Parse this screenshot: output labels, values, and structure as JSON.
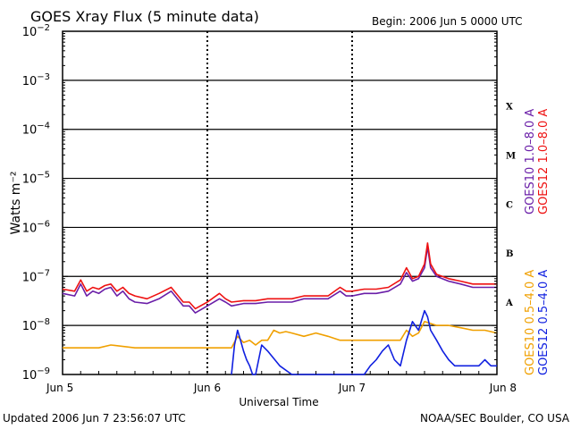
{
  "title": "GOES Xray Flux (5 minute data)",
  "begin_label": "Begin:  2006 Jun 5 0000 UTC",
  "updated_label": "Updated 2006 Jun  7 23:56:07 UTC",
  "credit_label": "NOAA/SEC Boulder, CO USA",
  "chart_data": {
    "type": "line",
    "title": "GOES Xray Flux (5 minute data)",
    "xlabel": "Universal Time",
    "ylabel": "Watts m⁻²",
    "y_scale": "log",
    "ylim": [
      1e-09,
      0.01
    ],
    "xlim": [
      "2006-06-05 00:00",
      "2006-06-08 00:00"
    ],
    "x_ticks": [
      {
        "t": "2006-06-05 00:00",
        "label": "Jun 5"
      },
      {
        "t": "2006-06-06 00:00",
        "label": "Jun 6"
      },
      {
        "t": "2006-06-07 00:00",
        "label": "Jun 7"
      },
      {
        "t": "2006-06-08 00:00",
        "label": "Jun 8"
      }
    ],
    "y_ticks": [
      {
        "value": 0.01,
        "mantissa": "10",
        "exp": "−2"
      },
      {
        "value": 0.001,
        "mantissa": "10",
        "exp": "−3"
      },
      {
        "value": 0.0001,
        "mantissa": "10",
        "exp": "−4"
      },
      {
        "value": 1e-05,
        "mantissa": "10",
        "exp": "−5"
      },
      {
        "value": 1e-06,
        "mantissa": "10",
        "exp": "−6"
      },
      {
        "value": 1e-07,
        "mantissa": "10",
        "exp": "−7"
      },
      {
        "value": 1e-08,
        "mantissa": "10",
        "exp": "−8"
      },
      {
        "value": 1e-09,
        "mantissa": "10",
        "exp": "−9"
      }
    ],
    "flare_classes": [
      {
        "label": "X",
        "value": 0.0003
      },
      {
        "label": "M",
        "value": 3e-05
      },
      {
        "label": "C",
        "value": 3e-06
      },
      {
        "label": "B",
        "value": 3e-07
      },
      {
        "label": "A",
        "value": 3e-08
      }
    ],
    "grid": "horizontal lines at 1e-3 to 1e-8, dashed day boundaries",
    "legend": [
      {
        "name": "GOES10 1.0–8.0 A",
        "color": "#6a1ea8"
      },
      {
        "name": "GOES12 1.0–8.0 A",
        "color": "#ee1111"
      },
      {
        "name": "GOES10 0.5–4.0 A",
        "color": "#f0a000"
      },
      {
        "name": "GOES12 0.5–4.0 A",
        "color": "#1020e0"
      }
    ],
    "series": [
      {
        "name": "GOES10 1.0–8.0 A",
        "color": "#6a1ea8",
        "x_hours": [
          0,
          2,
          3,
          4,
          5,
          6,
          7,
          8,
          9,
          10,
          11,
          12,
          14,
          16,
          18,
          20,
          21,
          22,
          24,
          26,
          27,
          28,
          30,
          32,
          34,
          36,
          38,
          40,
          42,
          44,
          46,
          47,
          48,
          50,
          52,
          54,
          56,
          57,
          58,
          59,
          60,
          60.5,
          61,
          62,
          64,
          66,
          68,
          70,
          72
        ],
        "values": [
          4.5e-08,
          4e-08,
          7e-08,
          4e-08,
          5e-08,
          4.5e-08,
          5.5e-08,
          6e-08,
          4e-08,
          5e-08,
          3.5e-08,
          3e-08,
          2.8e-08,
          3.5e-08,
          5e-08,
          2.5e-08,
          2.5e-08,
          1.8e-08,
          2.5e-08,
          3.5e-08,
          3e-08,
          2.5e-08,
          2.8e-08,
          2.8e-08,
          3e-08,
          3e-08,
          3e-08,
          3.5e-08,
          3.5e-08,
          3.5e-08,
          5e-08,
          4e-08,
          4e-08,
          4.5e-08,
          4.5e-08,
          5e-08,
          7e-08,
          1.2e-07,
          8e-08,
          9e-08,
          1.5e-07,
          4e-07,
          1.5e-07,
          1e-07,
          8e-08,
          7e-08,
          6e-08,
          6e-08,
          6e-08
        ]
      },
      {
        "name": "GOES12 1.0–8.0 A",
        "color": "#ee1111",
        "x_hours": [
          0,
          2,
          3,
          4,
          5,
          6,
          7,
          8,
          9,
          10,
          11,
          12,
          14,
          16,
          18,
          20,
          21,
          22,
          24,
          26,
          27,
          28,
          30,
          32,
          34,
          36,
          38,
          40,
          42,
          44,
          46,
          47,
          48,
          50,
          52,
          54,
          56,
          57,
          58,
          59,
          60,
          60.5,
          61,
          62,
          64,
          66,
          68,
          70,
          72
        ],
        "values": [
          5.5e-08,
          5e-08,
          8.5e-08,
          5e-08,
          6e-08,
          5.5e-08,
          6.5e-08,
          7e-08,
          5e-08,
          6e-08,
          4.5e-08,
          4e-08,
          3.5e-08,
          4.5e-08,
          6e-08,
          3e-08,
          3e-08,
          2.2e-08,
          3e-08,
          4.5e-08,
          3.5e-08,
          3e-08,
          3.2e-08,
          3.2e-08,
          3.5e-08,
          3.5e-08,
          3.5e-08,
          4e-08,
          4e-08,
          4e-08,
          6e-08,
          5e-08,
          5e-08,
          5.5e-08,
          5.5e-08,
          6e-08,
          8.5e-08,
          1.5e-07,
          9e-08,
          1e-07,
          1.8e-07,
          4.8e-07,
          1.8e-07,
          1.1e-07,
          9e-08,
          8e-08,
          7e-08,
          7e-08,
          7e-08
        ]
      },
      {
        "name": "GOES10 0.5–4.0 A",
        "color": "#f0a000",
        "x_hours": [
          0,
          6,
          8,
          12,
          16,
          20,
          24,
          28,
          29,
          30,
          31,
          32,
          33,
          34,
          35,
          36,
          37,
          38,
          40,
          42,
          44,
          46,
          48,
          50,
          52,
          54,
          56,
          57,
          58,
          59,
          60,
          62,
          64,
          66,
          68,
          70,
          72
        ],
        "values": [
          3.5e-09,
          3.5e-09,
          4e-09,
          3.5e-09,
          3.5e-09,
          3.5e-09,
          3.5e-09,
          3.5e-09,
          6e-09,
          4.5e-09,
          5e-09,
          4e-09,
          5e-09,
          5e-09,
          8e-09,
          7e-09,
          7.5e-09,
          7e-09,
          6e-09,
          7e-09,
          6e-09,
          5e-09,
          5e-09,
          5e-09,
          5e-09,
          5e-09,
          5e-09,
          8e-09,
          6e-09,
          7e-09,
          1.2e-08,
          1e-08,
          1e-08,
          9e-09,
          8e-09,
          8e-09,
          7e-09
        ]
      },
      {
        "name": "GOES12 0.5–4.0 A",
        "color": "#1020e0",
        "x_hours": [
          28,
          28.5,
          29,
          29.5,
          30,
          30.5,
          31,
          31.5,
          32,
          32.5,
          33,
          34,
          36,
          38,
          40,
          42,
          44,
          46,
          48,
          50,
          51,
          52,
          53,
          54,
          55,
          56,
          57,
          58,
          59,
          60,
          60.5,
          61,
          62,
          63,
          64,
          65,
          66,
          67,
          68,
          69,
          70,
          71,
          72
        ],
        "values": [
          1e-09,
          4e-09,
          8e-09,
          5e-09,
          3e-09,
          2e-09,
          1.5e-09,
          1e-09,
          1e-09,
          2e-09,
          4e-09,
          3e-09,
          1.5e-09,
          1e-09,
          1e-09,
          1e-09,
          1e-09,
          1e-09,
          1e-09,
          1e-09,
          1.5e-09,
          2e-09,
          3e-09,
          4e-09,
          2e-09,
          1.5e-09,
          5e-09,
          1.2e-08,
          8e-09,
          2e-08,
          1.5e-08,
          8e-09,
          5e-09,
          3e-09,
          2e-09,
          1.5e-09,
          1.5e-09,
          1.5e-09,
          1.5e-09,
          1.5e-09,
          2e-09,
          1.5e-09,
          1.5e-09
        ]
      }
    ]
  }
}
